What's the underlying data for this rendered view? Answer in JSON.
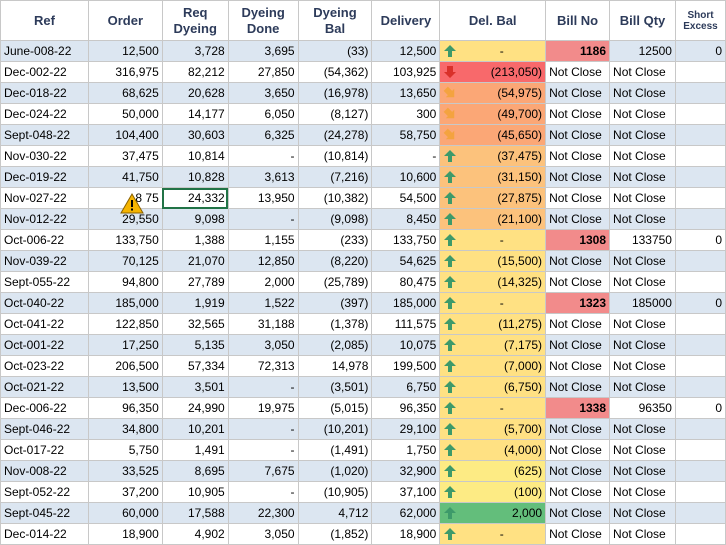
{
  "columns": [
    "Ref",
    "Order",
    "Req\nDyeing",
    "Dyeing\nDone",
    "Dyeing\nBal",
    "Delivery",
    "Del. Bal",
    "Bill No",
    "Bill Qty",
    "Short\nExcess"
  ],
  "colors": {
    "row_band": "#dce6f1",
    "bill_highlight": "#f28b8b",
    "delbal_red": "#f8696b",
    "delbal_orange": "#fba776",
    "delbal_light_orange": "#fcc27c",
    "delbal_yellow": "#ffe183",
    "delbal_light_yellow": "#fdeb84",
    "delbal_green": "#63be7b",
    "arrow_up_green": "#3d9a6a",
    "arrow_down_red": "#d9312a",
    "arrow_diag_orange": "#f4a340",
    "header_text": "#2d3b5a"
  },
  "rows": [
    {
      "ref": "June-008-22",
      "order": "12,500",
      "req": "3,728",
      "done": "3,695",
      "bal": "(33)",
      "delivery": "12,500",
      "delbal": "-",
      "icon": "arrow-up-icon",
      "tone": "c-yellow",
      "bill": "1186",
      "billqty": "12500",
      "se": "0"
    },
    {
      "ref": "Dec-002-22",
      "order": "316,975",
      "req": "82,212",
      "done": "27,850",
      "bal": "(54,362)",
      "delivery": "103,925",
      "delbal": "(213,050)",
      "icon": "arrow-down-icon",
      "tone": "c-red",
      "bill": "Not Close",
      "billqty": "Not Close",
      "se": ""
    },
    {
      "ref": "Dec-018-22",
      "order": "68,625",
      "req": "20,628",
      "done": "3,650",
      "bal": "(16,978)",
      "delivery": "13,650",
      "delbal": "(54,975)",
      "icon": "arrow-diag-icon",
      "tone": "c-orange",
      "bill": "Not Close",
      "billqty": "Not Close",
      "se": ""
    },
    {
      "ref": "Dec-024-22",
      "order": "50,000",
      "req": "14,177",
      "done": "6,050",
      "bal": "(8,127)",
      "delivery": "300",
      "delbal": "(49,700)",
      "icon": "arrow-diag-icon",
      "tone": "c-orange",
      "bill": "Not Close",
      "billqty": "Not Close",
      "se": ""
    },
    {
      "ref": "Sept-048-22",
      "order": "104,400",
      "req": "30,603",
      "done": "6,325",
      "bal": "(24,278)",
      "delivery": "58,750",
      "delbal": "(45,650)",
      "icon": "arrow-diag-icon",
      "tone": "c-orange",
      "bill": "Not Close",
      "billqty": "Not Close",
      "se": ""
    },
    {
      "ref": "Nov-030-22",
      "order": "37,475",
      "req": "10,814",
      "done": "-",
      "bal": "(10,814)",
      "delivery": "-",
      "delbal": "(37,475)",
      "icon": "arrow-up-icon",
      "tone": "c-lorange",
      "bill": "Not Close",
      "billqty": "Not Close",
      "se": ""
    },
    {
      "ref": "Dec-019-22",
      "order": "41,750",
      "req": "10,828",
      "done": "3,613",
      "bal": "(7,216)",
      "delivery": "10,600",
      "delbal": "(31,150)",
      "icon": "arrow-up-icon",
      "tone": "c-lorange",
      "bill": "Not Close",
      "billqty": "Not Close",
      "se": ""
    },
    {
      "ref": "Nov-027-22",
      "order": "8  75",
      "req": "24,332",
      "done": "13,950",
      "bal": "(10,382)",
      "delivery": "54,500",
      "delbal": "(27,875)",
      "icon": "arrow-up-icon",
      "tone": "c-lorange",
      "bill": "Not Close",
      "billqty": "Not Close",
      "se": ""
    },
    {
      "ref": "Nov-012-22",
      "order": "29,550",
      "req": "9,098",
      "done": "-",
      "bal": "(9,098)",
      "delivery": "8,450",
      "delbal": "(21,100)",
      "icon": "arrow-up-icon",
      "tone": "c-lorange",
      "bill": "Not Close",
      "billqty": "Not Close",
      "se": ""
    },
    {
      "ref": "Oct-006-22",
      "order": "133,750",
      "req": "1,388",
      "done": "1,155",
      "bal": "(233)",
      "delivery": "133,750",
      "delbal": "-",
      "icon": "arrow-up-icon",
      "tone": "c-yellow",
      "bill": "1308",
      "billqty": "133750",
      "se": "0"
    },
    {
      "ref": "Nov-039-22",
      "order": "70,125",
      "req": "21,070",
      "done": "12,850",
      "bal": "(8,220)",
      "delivery": "54,625",
      "delbal": "(15,500)",
      "icon": "arrow-up-icon",
      "tone": "c-yellow",
      "bill": "Not Close",
      "billqty": "Not Close",
      "se": ""
    },
    {
      "ref": "Sept-055-22",
      "order": "94,800",
      "req": "27,789",
      "done": "2,000",
      "bal": "(25,789)",
      "delivery": "80,475",
      "delbal": "(14,325)",
      "icon": "arrow-up-icon",
      "tone": "c-yellow",
      "bill": "Not Close",
      "billqty": "Not Close",
      "se": ""
    },
    {
      "ref": "Oct-040-22",
      "order": "185,000",
      "req": "1,919",
      "done": "1,522",
      "bal": "(397)",
      "delivery": "185,000",
      "delbal": "-",
      "icon": "arrow-up-icon",
      "tone": "c-yellow",
      "bill": "1323",
      "billqty": "185000",
      "se": "0"
    },
    {
      "ref": "Oct-041-22",
      "order": "122,850",
      "req": "32,565",
      "done": "31,188",
      "bal": "(1,378)",
      "delivery": "111,575",
      "delbal": "(11,275)",
      "icon": "arrow-up-icon",
      "tone": "c-yellow",
      "bill": "Not Close",
      "billqty": "Not Close",
      "se": ""
    },
    {
      "ref": "Oct-001-22",
      "order": "17,250",
      "req": "5,135",
      "done": "3,050",
      "bal": "(2,085)",
      "delivery": "10,075",
      "delbal": "(7,175)",
      "icon": "arrow-up-icon",
      "tone": "c-yellow",
      "bill": "Not Close",
      "billqty": "Not Close",
      "se": ""
    },
    {
      "ref": "Oct-023-22",
      "order": "206,500",
      "req": "57,334",
      "done": "72,313",
      "bal": "14,978",
      "delivery": "199,500",
      "delbal": "(7,000)",
      "icon": "arrow-up-icon",
      "tone": "c-yellow",
      "bill": "Not Close",
      "billqty": "Not Close",
      "se": ""
    },
    {
      "ref": "Oct-021-22",
      "order": "13,500",
      "req": "3,501",
      "done": "-",
      "bal": "(3,501)",
      "delivery": "6,750",
      "delbal": "(6,750)",
      "icon": "arrow-up-icon",
      "tone": "c-yellow",
      "bill": "Not Close",
      "billqty": "Not Close",
      "se": ""
    },
    {
      "ref": "Dec-006-22",
      "order": "96,350",
      "req": "24,990",
      "done": "19,975",
      "bal": "(5,015)",
      "delivery": "96,350",
      "delbal": "-",
      "icon": "arrow-up-icon",
      "tone": "c-yellow",
      "bill": "1338",
      "billqty": "96350",
      "se": "0"
    },
    {
      "ref": "Sept-046-22",
      "order": "34,800",
      "req": "10,201",
      "done": "-",
      "bal": "(10,201)",
      "delivery": "29,100",
      "delbal": "(5,700)",
      "icon": "arrow-up-icon",
      "tone": "c-yellow",
      "bill": "Not Close",
      "billqty": "Not Close",
      "se": ""
    },
    {
      "ref": "Oct-017-22",
      "order": "5,750",
      "req": "1,491",
      "done": "-",
      "bal": "(1,491)",
      "delivery": "1,750",
      "delbal": "(4,000)",
      "icon": "arrow-up-icon",
      "tone": "c-yellow",
      "bill": "Not Close",
      "billqty": "Not Close",
      "se": ""
    },
    {
      "ref": "Nov-008-22",
      "order": "33,525",
      "req": "8,695",
      "done": "7,675",
      "bal": "(1,020)",
      "delivery": "32,900",
      "delbal": "(625)",
      "icon": "arrow-up-icon",
      "tone": "c-lyellow",
      "bill": "Not Close",
      "billqty": "Not Close",
      "se": ""
    },
    {
      "ref": "Sept-052-22",
      "order": "37,200",
      "req": "10,905",
      "done": "-",
      "bal": "(10,905)",
      "delivery": "37,100",
      "delbal": "(100)",
      "icon": "arrow-up-icon",
      "tone": "c-lyellow",
      "bill": "Not Close",
      "billqty": "Not Close",
      "se": ""
    },
    {
      "ref": "Sept-045-22",
      "order": "60,000",
      "req": "17,588",
      "done": "22,300",
      "bal": "4,712",
      "delivery": "62,000",
      "delbal": "2,000",
      "icon": "arrow-up-icon",
      "tone": "c-green",
      "bill": "Not Close",
      "billqty": "Not Close",
      "se": ""
    },
    {
      "ref": "Dec-014-22",
      "order": "18,900",
      "req": "4,902",
      "done": "3,050",
      "bal": "(1,852)",
      "delivery": "18,900",
      "delbal": "-",
      "icon": "arrow-up-icon",
      "tone": "c-yellow",
      "bill": "Not Close",
      "billqty": "Not Close",
      "se": ""
    }
  ]
}
